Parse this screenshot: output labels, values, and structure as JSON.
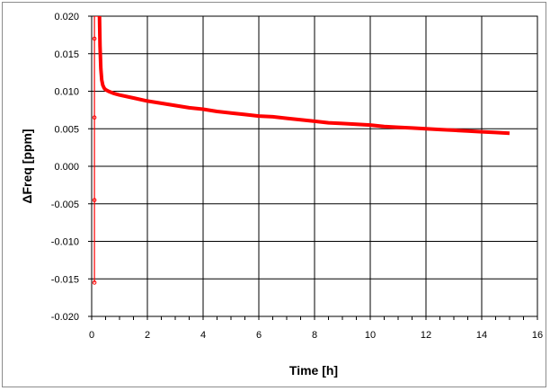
{
  "chart_data": {
    "type": "line",
    "title": "",
    "xlabel": "Time [h]",
    "ylabel": "ΔFreq [ppm]",
    "xlim": [
      0,
      16
    ],
    "ylim": [
      -0.02,
      0.02
    ],
    "x_ticks": [
      0,
      2,
      4,
      6,
      8,
      10,
      12,
      14,
      16
    ],
    "y_ticks": [
      -0.02,
      -0.015,
      -0.01,
      -0.005,
      0.0,
      0.005,
      0.01,
      0.015,
      0.02
    ],
    "x_tick_labels": [
      "0",
      "2",
      "4",
      "6",
      "8",
      "10",
      "12",
      "14",
      "16"
    ],
    "y_tick_labels": [
      "-0.020",
      "-0.015",
      "-0.010",
      "-0.005",
      "0.000",
      "0.005",
      "0.010",
      "0.015",
      "0.020"
    ],
    "grid": true,
    "legend": "none",
    "colors": {
      "series": "#ff0000",
      "grid": "#000000"
    },
    "series": [
      {
        "x": [
          0.1,
          0.1,
          0.1,
          0.1,
          0.1,
          0.28,
          0.3,
          0.33,
          0.36,
          0.4,
          0.45,
          0.5,
          0.6,
          0.8,
          1.0,
          1.5,
          2.0,
          2.5,
          3.0,
          3.5,
          4.0,
          4.5,
          5.0,
          5.5,
          6.0,
          6.5,
          7.0,
          7.5,
          8.0,
          8.5,
          9.0,
          9.5,
          10.0,
          10.5,
          11.0,
          11.5,
          12.0,
          12.5,
          13.0,
          13.5,
          14.0,
          14.5,
          15.0
        ],
        "y": [
          -0.0155,
          -0.0045,
          0.0065,
          0.017,
          0.02,
          0.02,
          0.016,
          0.013,
          0.0115,
          0.0108,
          0.0104,
          0.0102,
          0.01,
          0.0097,
          0.0095,
          0.0091,
          0.0087,
          0.0084,
          0.0081,
          0.0078,
          0.0076,
          0.0073,
          0.0071,
          0.0069,
          0.0067,
          0.0066,
          0.0064,
          0.0062,
          0.006,
          0.0058,
          0.0057,
          0.0056,
          0.0055,
          0.0053,
          0.0052,
          0.0051,
          0.005,
          0.0049,
          0.0048,
          0.0047,
          0.0046,
          0.0045,
          0.0044
        ]
      }
    ]
  }
}
